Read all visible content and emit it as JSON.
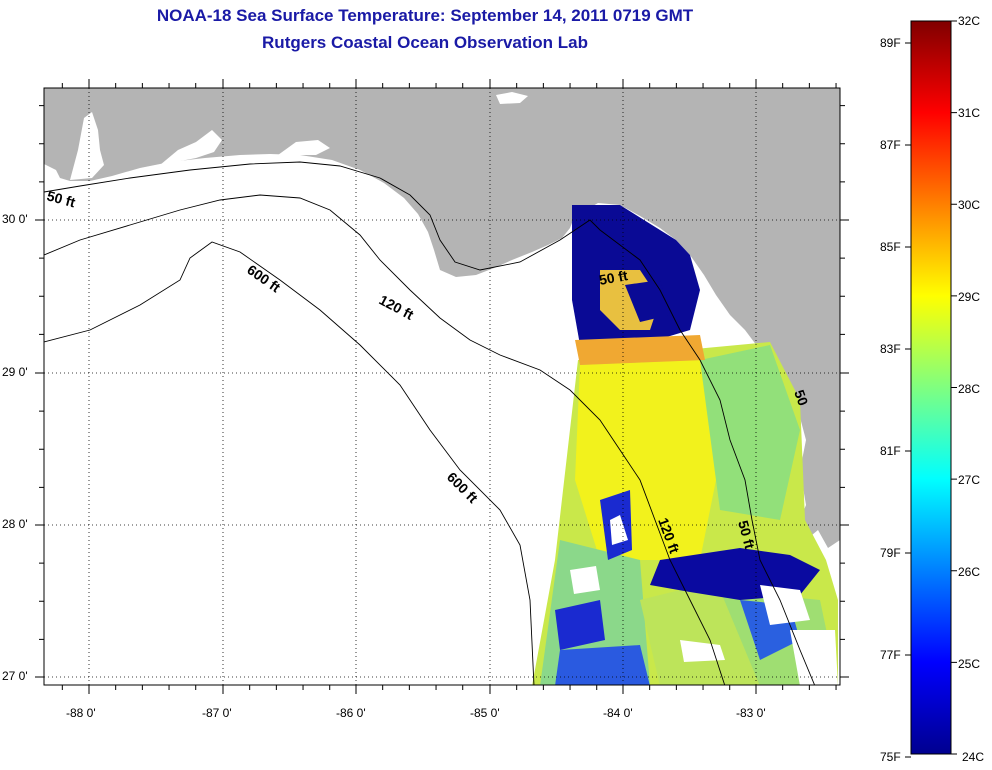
{
  "title": {
    "line1": "NOAA-18 Sea Surface Temperature:  September 14, 2011 0719 GMT",
    "line2": "Rutgers Coastal Ocean Observation Lab"
  },
  "map": {
    "x_ticks": [
      "-88 0'",
      "-87 0'",
      "-86 0'",
      "-85 0'",
      "-84 0'",
      "-83 0'"
    ],
    "y_ticks": [
      "30 0'",
      "29 0'",
      "28 0'",
      "27 0'"
    ],
    "contour_labels": [
      "50 ft",
      "600 ft",
      "120 ft",
      "600 ft",
      "50 ft",
      "120 ft",
      "50 ft",
      "50"
    ],
    "colors": {
      "land": "#b4b4b4",
      "ocean": "#ffffff",
      "contour": "#000000"
    }
  },
  "colorbar": {
    "celsius_labels": [
      "32C",
      "31C",
      "30C",
      "29C",
      "28C",
      "27C",
      "26C",
      "25C",
      "24C"
    ],
    "fahrenheit_labels": [
      "89F",
      "87F",
      "85F",
      "83F",
      "81F",
      "79F",
      "77F",
      "75F"
    ],
    "range_c": [
      24,
      32
    ],
    "colormap": "jet"
  }
}
